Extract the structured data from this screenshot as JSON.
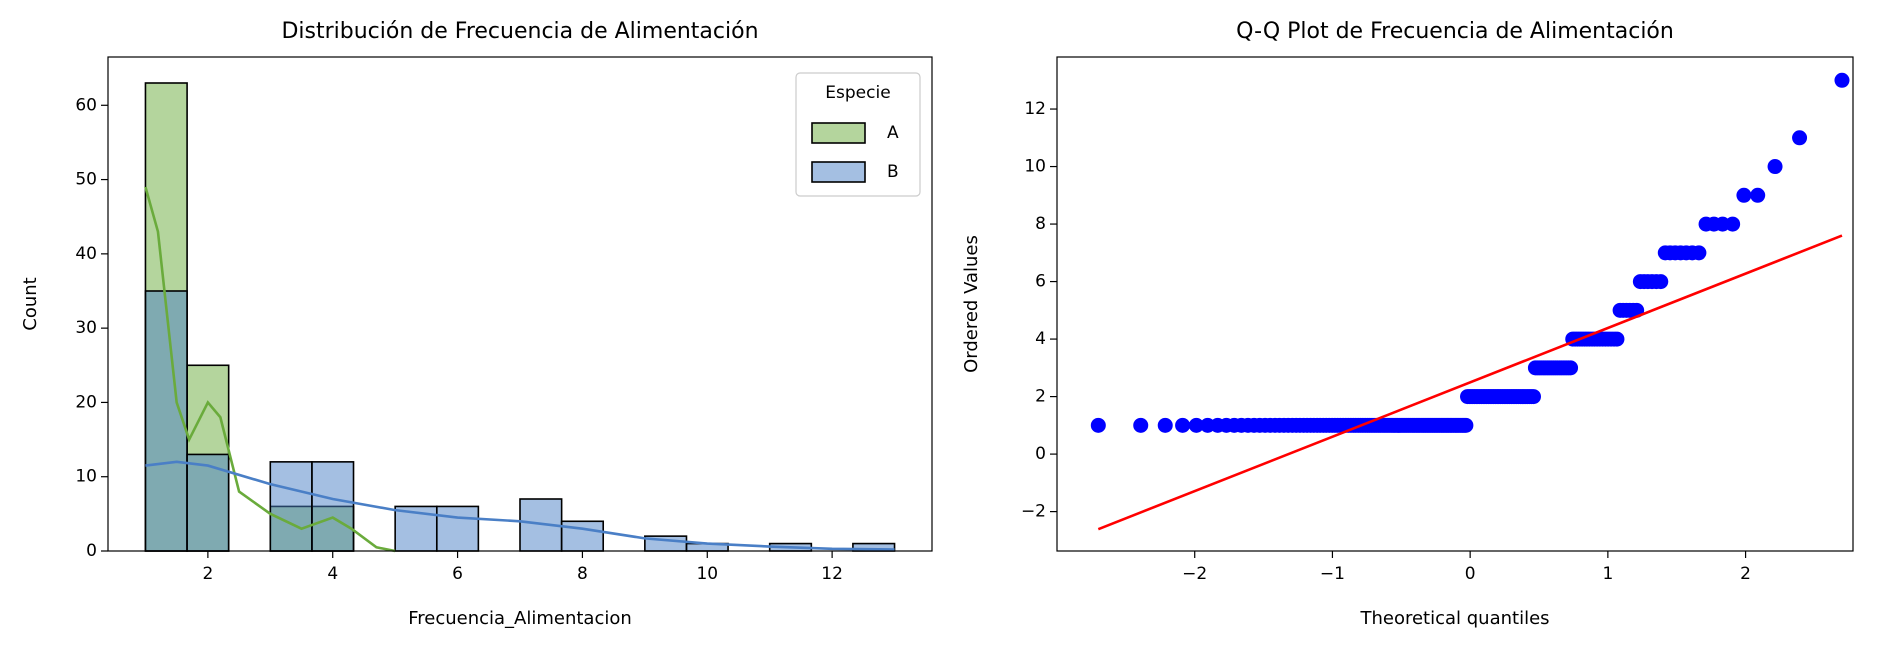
{
  "chart_data": [
    {
      "type": "histogram",
      "title": "Distribución de Frecuencia de Alimentación",
      "xlabel": "Frecuencia_Alimentacion",
      "ylabel": "Count",
      "bins": [
        1,
        1.667,
        2.333,
        3,
        3.667,
        4.333,
        5,
        5.667,
        6.333,
        7,
        7.667,
        8.333,
        9,
        9.667,
        10.333,
        11,
        11.667,
        12.333,
        13
      ],
      "series": [
        {
          "name": "A",
          "color": "#6aab3c",
          "values": [
            63,
            25,
            0,
            6,
            6,
            0,
            0,
            0,
            0,
            0,
            0,
            0,
            0,
            0,
            0,
            0,
            0,
            0
          ],
          "kde": {
            "x": [
              1,
              1.2,
              1.5,
              1.7,
              2,
              2.2,
              2.5,
              3,
              3.5,
              4,
              4.3,
              4.7,
              5
            ],
            "values": [
              49,
              43,
              20,
              15,
              20,
              18,
              8,
              5,
              3,
              4.5,
              3,
              0.5,
              0
            ]
          }
        },
        {
          "name": "B",
          "color": "#4a7fc6",
          "values": [
            35,
            13,
            0,
            12,
            12,
            0,
            6,
            6,
            0,
            7,
            4,
            0,
            2,
            1,
            0,
            1,
            0,
            1
          ],
          "kde": {
            "x": [
              1,
              1.5,
              2,
              3,
              4,
              5,
              6,
              7,
              8,
              9,
              10,
              11,
              12,
              13
            ],
            "values": [
              11.5,
              12,
              11.5,
              9,
              7,
              5.5,
              4.5,
              4,
              3,
              1.7,
              1,
              0.6,
              0.3,
              0.2
            ]
          }
        }
      ],
      "legend": {
        "title": "Especie",
        "loc": "upper right"
      },
      "xlim": [
        0.4,
        13.6
      ],
      "ylim": [
        0,
        66.5
      ],
      "xticks": [
        2,
        4,
        6,
        8,
        10,
        12
      ],
      "yticks": [
        0,
        10,
        20,
        30,
        40,
        50,
        60
      ]
    },
    {
      "type": "scatter",
      "title": "Q-Q Plot de Frecuencia de Alimentación",
      "xlabel": "Theoretical quantiles",
      "ylabel": "Ordered Values",
      "color": "#0000ff",
      "x": [
        -2.7,
        -2.392,
        -2.214,
        -2.088,
        -1.988,
        -1.906,
        -1.833,
        -1.77,
        -1.713,
        -1.661,
        -1.613,
        -1.569,
        -1.528,
        -1.489,
        -1.452,
        -1.417,
        -1.384,
        -1.352,
        -1.321,
        -1.291,
        -1.263,
        -1.236,
        -1.209,
        -1.184,
        -1.159,
        -1.135,
        -1.111,
        -1.089,
        -1.066,
        -1.045,
        -1.023,
        -1.002,
        -0.982,
        -0.962,
        -0.942,
        -0.922,
        -0.903,
        -0.885,
        -0.866,
        -0.848,
        -0.831,
        -0.813,
        -0.796,
        -0.779,
        -0.762,
        -0.745,
        -0.729,
        -0.713,
        -0.697,
        -0.681,
        -0.665,
        -0.65,
        -0.634,
        -0.619,
        -0.604,
        -0.589,
        -0.574,
        -0.56,
        -0.545,
        -0.531,
        -0.516,
        -0.502,
        -0.488,
        -0.474,
        -0.46,
        -0.446,
        -0.432,
        -0.418,
        -0.405,
        -0.391,
        -0.378,
        -0.365,
        -0.351,
        -0.338,
        -0.325,
        -0.312,
        -0.299,
        -0.286,
        -0.273,
        -0.26,
        -0.247,
        -0.234,
        -0.221,
        -0.208,
        -0.196,
        -0.183,
        -0.17,
        -0.158,
        -0.145,
        -0.133,
        -0.12,
        -0.107,
        -0.095,
        -0.082,
        -0.069,
        -0.056,
        -0.044,
        -0.031,
        -0.019,
        -0.006,
        0.006,
        0.019,
        0.031,
        0.044,
        0.056,
        0.069,
        0.082,
        0.095,
        0.107,
        0.12,
        0.133,
        0.145,
        0.158,
        0.17,
        0.183,
        0.196,
        0.208,
        0.221,
        0.234,
        0.247,
        0.26,
        0.273,
        0.286,
        0.299,
        0.312,
        0.325,
        0.338,
        0.351,
        0.365,
        0.378,
        0.391,
        0.405,
        0.418,
        0.432,
        0.446,
        0.46,
        0.474,
        0.488,
        0.502,
        0.516,
        0.531,
        0.545,
        0.56,
        0.574,
        0.589,
        0.604,
        0.619,
        0.634,
        0.65,
        0.665,
        0.681,
        0.697,
        0.713,
        0.729,
        0.745,
        0.762,
        0.779,
        0.796,
        0.813,
        0.831,
        0.848,
        0.866,
        0.885,
        0.903,
        0.922,
        0.942,
        0.962,
        0.982,
        1.002,
        1.023,
        1.045,
        1.066,
        1.089,
        1.111,
        1.135,
        1.159,
        1.184,
        1.209,
        1.236,
        1.263,
        1.291,
        1.321,
        1.352,
        1.384,
        1.417,
        1.452,
        1.489,
        1.528,
        1.569,
        1.613,
        1.661,
        1.713,
        1.77,
        1.833,
        1.906,
        1.988,
        2.088,
        2.214,
        2.392,
        2.7
      ],
      "values": [
        1,
        1,
        1,
        1,
        1,
        1,
        1,
        1,
        1,
        1,
        1,
        1,
        1,
        1,
        1,
        1,
        1,
        1,
        1,
        1,
        1,
        1,
        1,
        1,
        1,
        1,
        1,
        1,
        1,
        1,
        1,
        1,
        1,
        1,
        1,
        1,
        1,
        1,
        1,
        1,
        1,
        1,
        1,
        1,
        1,
        1,
        1,
        1,
        1,
        1,
        1,
        1,
        1,
        1,
        1,
        1,
        1,
        1,
        1,
        1,
        1,
        1,
        1,
        1,
        1,
        1,
        1,
        1,
        1,
        1,
        1,
        1,
        1,
        1,
        1,
        1,
        1,
        1,
        1,
        1,
        1,
        1,
        1,
        1,
        1,
        1,
        1,
        1,
        1,
        1,
        1,
        1,
        1,
        1,
        1,
        1,
        1,
        1,
        2,
        2,
        2,
        2,
        2,
        2,
        2,
        2,
        2,
        2,
        2,
        2,
        2,
        2,
        2,
        2,
        2,
        2,
        2,
        2,
        2,
        2,
        2,
        2,
        2,
        2,
        2,
        2,
        2,
        2,
        2,
        2,
        2,
        2,
        2,
        2,
        2,
        2,
        3,
        3,
        3,
        3,
        3,
        3,
        3,
        3,
        3,
        3,
        3,
        3,
        3,
        3,
        3,
        3,
        3,
        3,
        4,
        4,
        4,
        4,
        4,
        4,
        4,
        4,
        4,
        4,
        4,
        4,
        4,
        4,
        4,
        4,
        4,
        4,
        5,
        5,
        5,
        5,
        5,
        5,
        6,
        6,
        6,
        6,
        6,
        6,
        7,
        7,
        7,
        7,
        7,
        7,
        7,
        8,
        8,
        8,
        8,
        9,
        9,
        10,
        11,
        13
      ],
      "fit_line": {
        "color": "#ff0000",
        "x": [
          -2.7,
          2.7
        ],
        "values": [
          -2.61,
          7.6
        ]
      },
      "xlim": [
        -3.0,
        2.78
      ],
      "ylim": [
        -3.37,
        13.81
      ],
      "xticks": [
        {
          "value": -2,
          "label": "−2"
        },
        {
          "value": -1,
          "label": "−1"
        },
        0,
        1,
        2
      ],
      "yticks": [
        {
          "value": -2,
          "label": "−2"
        },
        0,
        2,
        4,
        6,
        8,
        10,
        12
      ]
    }
  ]
}
